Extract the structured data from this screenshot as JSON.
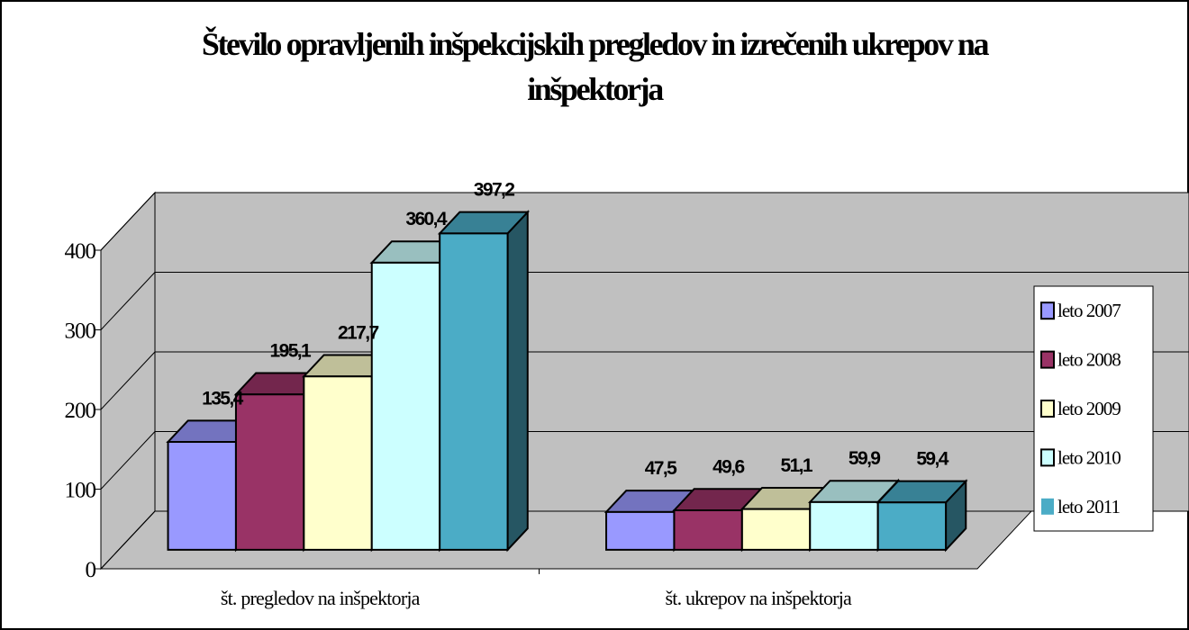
{
  "chart_data": {
    "type": "bar3d",
    "title": "Število opravljenih inšpekcijskih pregledov in izrečenih ukrepov na inšpektorja",
    "categories": [
      "št. pregledov na inšpektorja",
      "št. ukrepov na inšpektorja"
    ],
    "series": [
      {
        "name": "leto 2007",
        "color": "#9999ff",
        "values": [
          135.4,
          47.5
        ],
        "value_labels": [
          "135,4",
          "47,5"
        ]
      },
      {
        "name": "leto 2008",
        "color": "#993366",
        "values": [
          195.1,
          49.6
        ],
        "value_labels": [
          "195,1",
          "49,6"
        ]
      },
      {
        "name": "leto 2009",
        "color": "#ffffcc",
        "values": [
          217.7,
          51.1
        ],
        "value_labels": [
          "217,7",
          "51,1"
        ]
      },
      {
        "name": "leto 2010",
        "color": "#ccffff",
        "values": [
          360.4,
          59.9
        ],
        "value_labels": [
          "360,4",
          "59,9"
        ]
      },
      {
        "name": "leto 2011",
        "color": "#4bacc6",
        "values": [
          397.2,
          59.4
        ],
        "value_labels": [
          "397,2",
          "59,4"
        ]
      }
    ],
    "ylim": [
      0,
      400
    ],
    "yticks": [
      0,
      100,
      200,
      300,
      400
    ],
    "grid": true,
    "legend": "right"
  }
}
